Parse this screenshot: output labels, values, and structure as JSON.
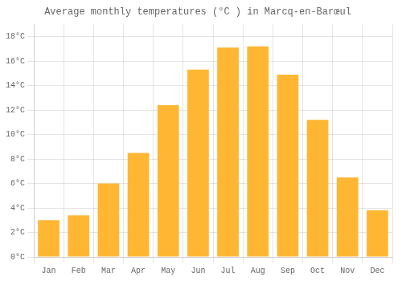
{
  "chart_data": {
    "type": "bar",
    "title": "Average monthly temperatures (°C ) in Marcq-en-Barœul",
    "categories": [
      "Jan",
      "Feb",
      "Mar",
      "Apr",
      "May",
      "Jun",
      "Jul",
      "Aug",
      "Sep",
      "Oct",
      "Nov",
      "Dec"
    ],
    "values": [
      3.0,
      3.4,
      6.0,
      8.5,
      12.4,
      15.3,
      17.1,
      17.2,
      14.9,
      11.2,
      6.5,
      3.8
    ],
    "color": "#FFB733",
    "ylim": [
      0,
      19
    ],
    "yticks": [
      {
        "value": 0,
        "label": "0°C"
      },
      {
        "value": 2,
        "label": "2°C"
      },
      {
        "value": 4,
        "label": "4°C"
      },
      {
        "value": 6,
        "label": "6°C"
      },
      {
        "value": 8,
        "label": "8°C"
      },
      {
        "value": 10,
        "label": "10°C"
      },
      {
        "value": 12,
        "label": "12°C"
      },
      {
        "value": 14,
        "label": "14°C"
      },
      {
        "value": 16,
        "label": "16°C"
      },
      {
        "value": 18,
        "label": "18°C"
      }
    ],
    "grid": true
  }
}
